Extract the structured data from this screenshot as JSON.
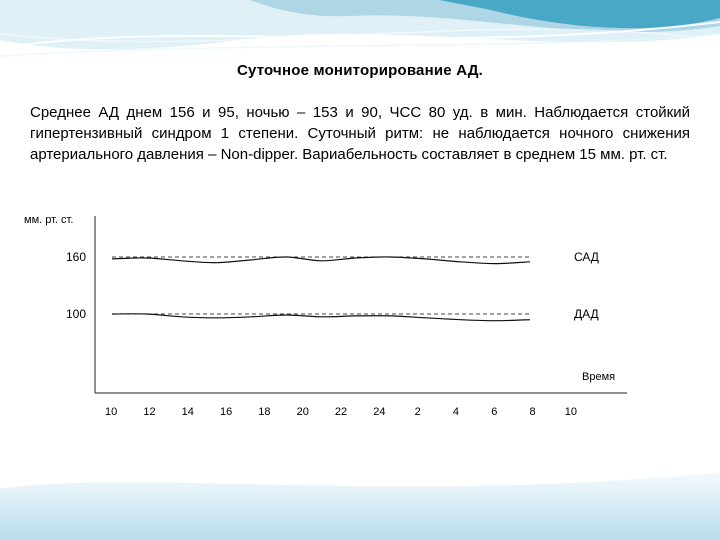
{
  "slide": {
    "title": "Суточное мониторирование АД.",
    "paragraph": "Среднее АД днем 156 и 95, ночью – 153 и 90, ЧСС 80 уд. в мин. Наблюдается стойкий гипертензивный синдром 1 степени. Суточный ритм: не наблюдается ночного снижения артериального давления – Non-dipper. Вариабельность составляет в среднем 15 мм. рт. ст."
  },
  "chart_data": {
    "type": "line",
    "ylabel": "мм. рт. ст.",
    "xlabel": "Время",
    "categories": [
      "10",
      "12",
      "14",
      "16",
      "18",
      "20",
      "22",
      "24",
      "2",
      "4",
      "6",
      "8",
      "10"
    ],
    "series": [
      {
        "name": "САД",
        "values": [
          158,
          159,
          156,
          154,
          157,
          160,
          156,
          159,
          160,
          158,
          155,
          153,
          155
        ]
      },
      {
        "name": "ДАД",
        "values": [
          100,
          100,
          97,
          96,
          97,
          99,
          97,
          98,
          98,
          96,
          94,
          93,
          94
        ]
      }
    ],
    "yticks": [
      160,
      100
    ],
    "reference_lines": [
      160,
      100
    ],
    "ylim": [
      85,
      170
    ],
    "grid": false,
    "legend_position": "right"
  }
}
